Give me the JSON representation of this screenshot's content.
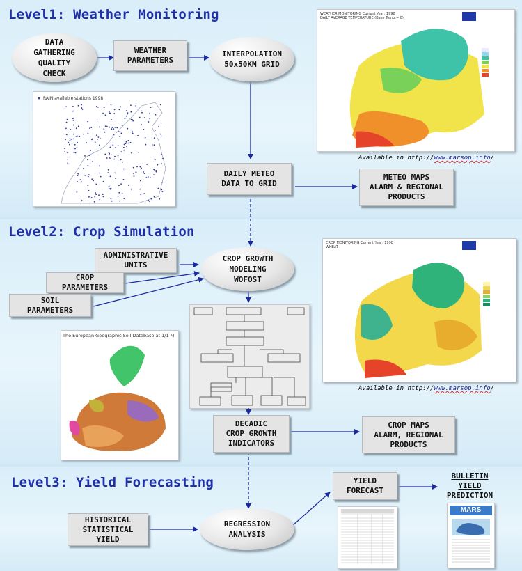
{
  "levels": [
    {
      "title": "Level1: Weather Monitoring"
    },
    {
      "title": "Level2: Crop Simulation"
    },
    {
      "title": "Level3: Yield Forecasting"
    }
  ],
  "nodes": {
    "data_gathering": "DATA\nGATHERING\nQUALITY\nCHECK",
    "weather_parameters": "WEATHER\nPARAMETERS",
    "interpolation": "INTERPOLATION\n50x50KM GRID",
    "daily_meteo": "DAILY METEO\nDATA TO GRID",
    "meteo_maps": "METEO MAPS\nALARM & REGIONAL\nPRODUCTS",
    "administrative_units": "ADMINISTRATIVE\nUNITS",
    "crop_parameters": "CROP\nPARAMETERS",
    "soil_parameters": "SOIL\nPARAMETERS",
    "crop_growth_modeling": "CROP GROWTH\nMODELING\nWOFOST",
    "decadic_indicators": "DECADIC\nCROP GROWTH\nINDICATORS",
    "crop_maps": "CROP MAPS\nALARM, REGIONAL\nPRODUCTS",
    "historical_yield": "HISTORICAL\nSTATISTICAL\nYIELD",
    "regression_analysis": "REGRESSION\nANALYSIS",
    "yield_forecast": "YIELD\nFORECAST",
    "bulletin": "BULLETIN\nYIELD\nPREDICTION"
  },
  "captions": {
    "meteo_prefix": "Available in http://",
    "meteo_link": "www.marsop.info",
    "meteo_suffix": "/",
    "crop_prefix": "Available in http://",
    "crop_link": "www.marsop.info",
    "crop_suffix": "/"
  },
  "images": {
    "rain_stations_label": "RAIN available stations 1998",
    "soil_db_label": "The European Geographic Soil Database at 1/1 M",
    "weather_map_header": "WEATHER MONITORING   Current Year: 1998\nDAILY AVERAGE TEMPERATURE (Base Temp.= 0)",
    "crop_map_header": "CROP MONITORING   Current Year: 1998\nWHEAT",
    "mars_logo": "MARS"
  },
  "colors": {
    "title_blue": "#1f2fa8",
    "arrow_blue": "#1c2aa0",
    "box_grey": "#e4e4e4",
    "band_light": "#e8f5fc"
  }
}
